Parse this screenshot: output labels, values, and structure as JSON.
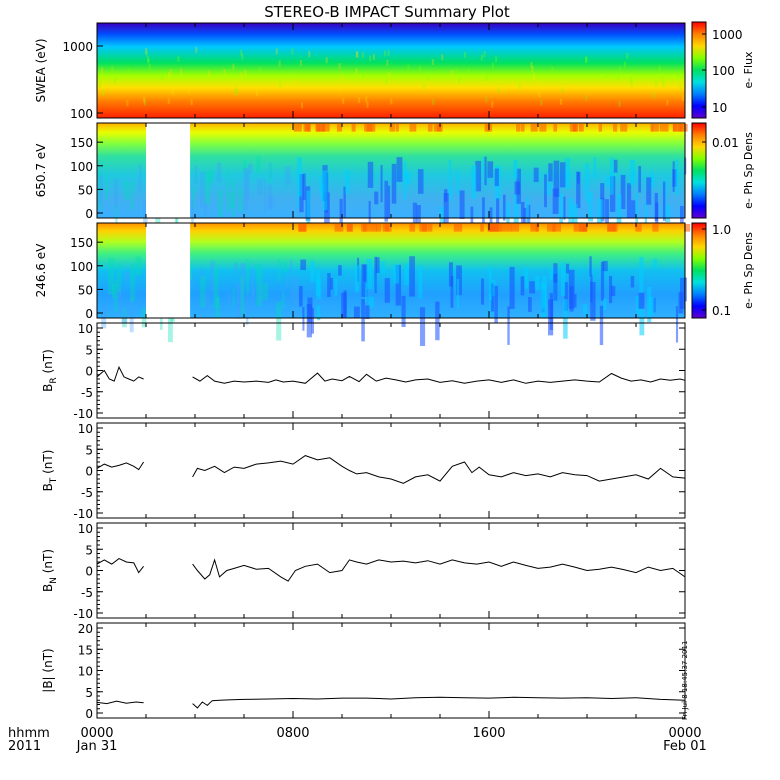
{
  "title": "STEREO-B IMPACT Summary Plot",
  "footer": {
    "corner_top": "hhmm",
    "corner_bottom": "2011",
    "x_ticks": [
      "0000",
      "0800",
      "1600",
      "0000"
    ],
    "x_sub": [
      "Jan 31",
      "",
      "",
      "Feb 01"
    ],
    "timestamp": "Fri Jul  8 18:45:37 2011"
  },
  "chart_data": [
    {
      "type": "heatmap",
      "panel": "swea",
      "ylabel": "SWEA (eV)",
      "yscale": "log",
      "yticks": [
        "1000",
        "100"
      ],
      "colorbar": {
        "label": "e- Flux",
        "ticks": [
          "1000",
          "100",
          "10"
        ],
        "scale": "log"
      },
      "x_range_hours": [
        0,
        24
      ],
      "data_gaps_hours": []
    },
    {
      "type": "heatmap",
      "panel": "pad650",
      "ylabel": "650.7 eV",
      "yticks": [
        "150",
        "100",
        "50",
        "0"
      ],
      "ylim": [
        0,
        180
      ],
      "colorbar": {
        "label": "e- Ph Sp Dens",
        "ticks": [
          "0.01"
        ],
        "scale": "log"
      },
      "x_range_hours": [
        0,
        24
      ],
      "data_gaps_hours": [
        [
          2.0,
          3.8
        ]
      ]
    },
    {
      "type": "heatmap",
      "panel": "pad246",
      "ylabel": "246.6 eV",
      "yticks": [
        "150",
        "100",
        "50",
        "0"
      ],
      "ylim": [
        0,
        180
      ],
      "colorbar": {
        "label": "e- Ph Sp Dens",
        "ticks": [
          "1.0",
          "0.1"
        ],
        "scale": "log"
      },
      "x_range_hours": [
        0,
        24
      ],
      "data_gaps_hours": [
        [
          2.0,
          3.8
        ]
      ]
    },
    {
      "type": "line",
      "panel": "br",
      "ylabel": "B",
      "ylabel_sub": "R",
      "ylabel_unit": "(nT)",
      "ylim": [
        -10,
        10
      ],
      "yticks": [
        "10",
        "5",
        "0",
        "-5",
        "-10"
      ],
      "x": [
        0,
        0.3,
        0.5,
        0.7,
        0.9,
        1.1,
        1.3,
        1.5,
        1.7,
        1.9,
        3.9,
        4.2,
        4.5,
        4.8,
        5.2,
        5.6,
        6.0,
        6.5,
        7.0,
        7.3,
        7.6,
        8.0,
        8.5,
        9.0,
        9.3,
        9.6,
        10.0,
        10.3,
        10.7,
        11.0,
        11.4,
        11.8,
        12.2,
        12.6,
        13.0,
        13.5,
        14.0,
        14.5,
        15.0,
        15.5,
        16.0,
        16.5,
        17.0,
        17.5,
        18.0,
        18.5,
        19.0,
        19.5,
        20.0,
        20.5,
        21.0,
        21.4,
        21.8,
        22.2,
        22.6,
        23.0,
        23.4,
        23.8,
        24.0
      ],
      "values": [
        -1.5,
        0,
        -2,
        -2.5,
        0.8,
        -1.5,
        -2,
        -2.5,
        -1.5,
        -2,
        -1.5,
        -2.5,
        -1.2,
        -2.5,
        -3,
        -2.5,
        -2.7,
        -2.5,
        -2.8,
        -2.2,
        -2.7,
        -2.5,
        -3,
        -0.6,
        -2.5,
        -2,
        -2.4,
        -1.4,
        -2.6,
        -0.9,
        -2.5,
        -1.8,
        -2.2,
        -2.7,
        -2.2,
        -2,
        -2.8,
        -2.4,
        -3,
        -2.5,
        -2.2,
        -2.8,
        -2.2,
        -3,
        -2.5,
        -2.8,
        -2.5,
        -2.2,
        -2.5,
        -2.7,
        -0.7,
        -1.8,
        -2.5,
        -2.2,
        -2.7,
        -2,
        -2.3,
        -2,
        -2.3
      ]
    },
    {
      "type": "line",
      "panel": "bt",
      "ylabel": "B",
      "ylabel_sub": "T",
      "ylabel_unit": "(nT)",
      "ylim": [
        -10,
        10
      ],
      "yticks": [
        "10",
        "5",
        "0",
        "-5",
        "-10"
      ],
      "x": [
        0,
        0.3,
        0.6,
        0.9,
        1.2,
        1.5,
        1.7,
        1.9,
        3.9,
        4.1,
        4.4,
        4.8,
        5.2,
        5.6,
        6.0,
        6.5,
        7.0,
        7.5,
        8.0,
        8.5,
        9.0,
        9.5,
        10.0,
        10.3,
        10.6,
        11.0,
        11.5,
        12.0,
        12.5,
        13.0,
        13.5,
        14.0,
        14.5,
        15.0,
        15.3,
        15.6,
        16.0,
        16.5,
        17.0,
        17.5,
        18.0,
        18.5,
        19.0,
        19.5,
        20.0,
        20.5,
        21.0,
        21.5,
        22.0,
        22.5,
        23.0,
        23.5,
        24.0
      ],
      "values": [
        0.5,
        1.5,
        0.8,
        1.2,
        1.8,
        1.0,
        0.2,
        2.0,
        -1.5,
        0.5,
        0,
        1.0,
        -0.5,
        0.8,
        0.5,
        1.5,
        1.8,
        2.2,
        1.5,
        3.5,
        2.5,
        3.0,
        1.0,
        0,
        -0.8,
        -0.5,
        -1.5,
        -2.0,
        -3.0,
        -1.5,
        -1.0,
        -2.5,
        1.0,
        2.0,
        -0.5,
        0.8,
        -1.0,
        -1.5,
        -0.5,
        -1.2,
        -0.8,
        -1.5,
        -0.5,
        -1.0,
        -1.2,
        -2.5,
        -2.0,
        -1.5,
        -1.0,
        -2.0,
        0.5,
        -1.5,
        -1.8
      ]
    },
    {
      "type": "line",
      "panel": "bn",
      "ylabel": "B",
      "ylabel_sub": "N",
      "ylabel_unit": "(nT)",
      "ylim": [
        -10,
        10
      ],
      "yticks": [
        "10",
        "5",
        "0",
        "-5",
        "-10"
      ],
      "x": [
        0,
        0.3,
        0.6,
        0.9,
        1.2,
        1.5,
        1.7,
        1.9,
        3.9,
        4.1,
        4.4,
        4.6,
        4.8,
        5.0,
        5.3,
        5.6,
        6.0,
        6.5,
        7.0,
        7.5,
        7.8,
        8.1,
        8.5,
        9.0,
        9.5,
        10.0,
        10.3,
        10.6,
        11.0,
        11.5,
        12.0,
        12.5,
        13.0,
        13.5,
        14.0,
        14.5,
        15.0,
        15.5,
        16.0,
        16.5,
        17.0,
        17.5,
        18.0,
        18.5,
        19.0,
        19.5,
        20.0,
        20.5,
        21.0,
        21.5,
        22.0,
        22.5,
        23.0,
        23.5,
        24.0
      ],
      "values": [
        1.5,
        2.5,
        1.5,
        2.8,
        2.0,
        1.8,
        -0.5,
        1.0,
        1.5,
        0,
        -2.0,
        -1.0,
        2.5,
        -1.5,
        0,
        0.5,
        1.2,
        0.3,
        0.5,
        -1.5,
        -2.5,
        0,
        1.0,
        1.5,
        -0.5,
        0,
        2.5,
        2.0,
        1.5,
        2.5,
        2.0,
        2.2,
        1.8,
        2.3,
        1.5,
        2.5,
        1.8,
        1.5,
        2.0,
        1.0,
        2.0,
        1.2,
        0.5,
        0.8,
        1.5,
        0.8,
        0,
        0.3,
        0.8,
        0.2,
        -0.5,
        0.8,
        0,
        0.5,
        -1.5
      ]
    },
    {
      "type": "line",
      "panel": "bmag",
      "ylabel": "|B| (nT)",
      "ylim": [
        0,
        20
      ],
      "yticks": [
        "20",
        "15",
        "10",
        "5",
        "0"
      ],
      "x": [
        0,
        0.4,
        0.8,
        1.2,
        1.6,
        1.9,
        3.9,
        4.1,
        4.3,
        4.5,
        4.7,
        5.0,
        5.5,
        6.0,
        7.0,
        8.0,
        9.0,
        10.0,
        11.0,
        12.0,
        13.0,
        14.0,
        15.0,
        16.0,
        17.0,
        18.0,
        19.0,
        20.0,
        21.0,
        22.0,
        23.0,
        24.0
      ],
      "values": [
        2.5,
        2.2,
        2.8,
        2.3,
        2.6,
        2.4,
        2.2,
        1.2,
        2.6,
        1.8,
        2.9,
        3.0,
        3.1,
        3.2,
        3.3,
        3.4,
        3.3,
        3.5,
        3.5,
        3.3,
        3.6,
        3.7,
        3.6,
        3.5,
        3.7,
        3.6,
        3.5,
        3.6,
        3.4,
        3.6,
        3.2,
        3.0
      ]
    }
  ]
}
